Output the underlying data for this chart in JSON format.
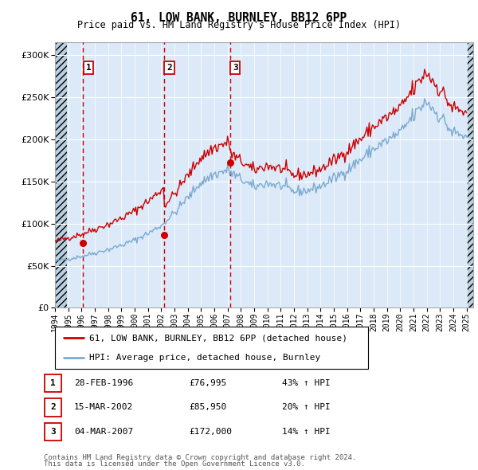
{
  "title": "61, LOW BANK, BURNLEY, BB12 6PP",
  "subtitle": "Price paid vs. HM Land Registry's House Price Index (HPI)",
  "legend_line1": "61, LOW BANK, BURNLEY, BB12 6PP (detached house)",
  "legend_line2": "HPI: Average price, detached house, Burnley",
  "footer1": "Contains HM Land Registry data © Crown copyright and database right 2024.",
  "footer2": "This data is licensed under the Open Government Licence v3.0.",
  "sales": [
    {
      "num": 1,
      "date": "28-FEB-1996",
      "price": 76995,
      "pct": "43% ↑ HPI",
      "year": 1996.12
    },
    {
      "num": 2,
      "date": "15-MAR-2002",
      "price": 85950,
      "pct": "20% ↑ HPI",
      "year": 2002.2
    },
    {
      "num": 3,
      "date": "04-MAR-2007",
      "price": 172000,
      "pct": "14% ↑ HPI",
      "year": 2007.17
    }
  ],
  "ylim": [
    0,
    315000
  ],
  "yticks": [
    0,
    50000,
    100000,
    150000,
    200000,
    250000,
    300000
  ],
  "xlim": [
    1994.0,
    2025.5
  ],
  "bg_color": "#dce9f8",
  "hatch_color": "#b8cfe0",
  "grid_color": "#ffffff",
  "red_line_color": "#cc0000",
  "blue_line_color": "#7aaad0",
  "sale_marker_color": "#cc0000",
  "hpi_months": {
    "start_year": 1994,
    "start_month": 1,
    "end_year": 2025,
    "end_month": 6
  },
  "hpi_anchor_years": [
    1994,
    1995,
    1996,
    1997,
    1998,
    1999,
    2000,
    2001,
    2002,
    2003,
    2004,
    2005,
    2006,
    2007,
    2008,
    2009,
    2010,
    2011,
    2012,
    2013,
    2014,
    2015,
    2016,
    2017,
    2018,
    2019,
    2020,
    2021,
    2022,
    2023,
    2024,
    2025
  ],
  "hpi_anchor_values": [
    55000,
    58000,
    61000,
    65000,
    69000,
    74000,
    80000,
    88000,
    97000,
    112000,
    130000,
    148000,
    158000,
    163000,
    153000,
    143000,
    148000,
    145000,
    138000,
    139000,
    144000,
    153000,
    163000,
    175000,
    188000,
    198000,
    207000,
    227000,
    245000,
    228000,
    208000,
    203000
  ],
  "sale_hpi_values": [
    53800,
    71625,
    150877
  ],
  "noise_seed": 42,
  "noise_scale": 0.022
}
